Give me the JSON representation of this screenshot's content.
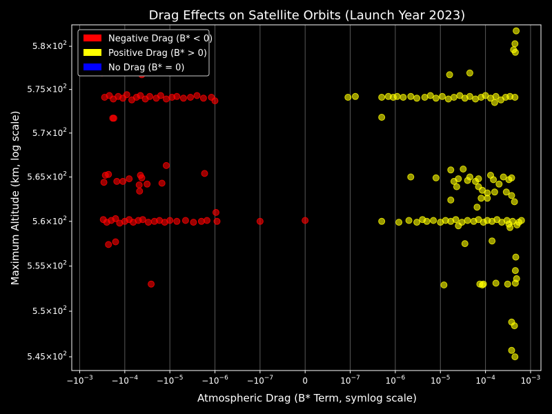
{
  "chart_data": {
    "type": "scatter",
    "title": "Drag Effects on Satellite Orbits (Launch Year 2023)",
    "xlabel": "Atmospheric Drag (B* Term, symlog scale)",
    "ylabel": "Maximum Altitude (km, log scale)",
    "x_scale": "symlog",
    "y_scale": "log",
    "linthresh": 1e-07,
    "xlim": [
      -0.0015,
      0.0017
    ],
    "ylim": [
      543.5,
      582.5
    ],
    "grid": "x-major",
    "legend_position": "top-left",
    "x_ticks": [
      {
        "value": -0.001,
        "label": "−10",
        "exp": "−3"
      },
      {
        "value": -0.0001,
        "label": "−10",
        "exp": "−4"
      },
      {
        "value": -1e-05,
        "label": "−10",
        "exp": "−5"
      },
      {
        "value": -1e-06,
        "label": "−10",
        "exp": "−6"
      },
      {
        "value": -1e-07,
        "label": "−10",
        "exp": "−7"
      },
      {
        "value": 0,
        "label": "0",
        "exp": ""
      },
      {
        "value": 1e-07,
        "label": "10",
        "exp": "−7"
      },
      {
        "value": 1e-06,
        "label": "10",
        "exp": "−6"
      },
      {
        "value": 1e-05,
        "label": "10",
        "exp": "−5"
      },
      {
        "value": 0.0001,
        "label": "10",
        "exp": "−4"
      },
      {
        "value": 0.001,
        "label": "10",
        "exp": "−3"
      }
    ],
    "y_ticks": [
      {
        "value": 545,
        "label": "5.45×10",
        "exp": "2"
      },
      {
        "value": 550,
        "label": "5.5×10",
        "exp": "2"
      },
      {
        "value": 555,
        "label": "5.55×10",
        "exp": "2"
      },
      {
        "value": 560,
        "label": "5.6×10",
        "exp": "2"
      },
      {
        "value": 565,
        "label": "5.65×10",
        "exp": "2"
      },
      {
        "value": 570,
        "label": "5.7×10",
        "exp": "2"
      },
      {
        "value": 575,
        "label": "5.75×10",
        "exp": "2"
      },
      {
        "value": 580,
        "label": "5.8×10",
        "exp": "2"
      }
    ],
    "series": [
      {
        "name": "Negative Drag (B* < 0)",
        "color": "#ff0000",
        "points": [
          [
            -0.00032,
            576.9
          ],
          [
            -4.2e-05,
            576.7
          ],
          [
            -0.00028,
            574.1
          ],
          [
            -0.00022,
            574.3
          ],
          [
            -0.00018,
            573.9
          ],
          [
            -0.00014,
            574.2
          ],
          [
            -0.00011,
            574.0
          ],
          [
            -9e-05,
            574.4
          ],
          [
            -7e-05,
            573.8
          ],
          [
            -5.5e-05,
            574.1
          ],
          [
            -4.5e-05,
            574.3
          ],
          [
            -3.5e-05,
            573.9
          ],
          [
            -2.8e-05,
            574.2
          ],
          [
            -2e-05,
            574.0
          ],
          [
            -1.6e-05,
            574.3
          ],
          [
            -1.2e-05,
            573.9
          ],
          [
            -9e-06,
            574.1
          ],
          [
            -7e-06,
            574.2
          ],
          [
            -5e-06,
            574.0
          ],
          [
            -3.5e-06,
            574.1
          ],
          [
            -2.5e-06,
            574.3
          ],
          [
            -1.8e-06,
            574.0
          ],
          [
            -1.2e-06,
            574.1
          ],
          [
            -1e-06,
            573.7
          ],
          [
            -0.000185,
            571.7
          ],
          [
            -0.000175,
            571.7
          ],
          [
            -1.2e-05,
            566.3
          ],
          [
            -1.7e-06,
            565.4
          ],
          [
            -0.00027,
            565.2
          ],
          [
            -0.00023,
            565.3
          ],
          [
            -0.00029,
            564.4
          ],
          [
            -0.00015,
            564.5
          ],
          [
            -0.00011,
            564.5
          ],
          [
            -8e-05,
            564.8
          ],
          [
            -4.5e-05,
            565.2
          ],
          [
            -4.2e-05,
            564.9
          ],
          [
            -3.2e-05,
            564.2
          ],
          [
            -4.8e-05,
            564.1
          ],
          [
            -4.7e-05,
            563.4
          ],
          [
            -1.5e-05,
            564.3
          ],
          [
            -0.0003,
            560.2
          ],
          [
            -0.00025,
            559.9
          ],
          [
            -0.0002,
            560.1
          ],
          [
            -0.00016,
            560.3
          ],
          [
            -0.00013,
            559.8
          ],
          [
            -0.0001,
            560.0
          ],
          [
            -8e-05,
            560.2
          ],
          [
            -6.5e-05,
            559.9
          ],
          [
            -5e-05,
            560.1
          ],
          [
            -4e-05,
            560.2
          ],
          [
            -3e-05,
            559.9
          ],
          [
            -2.2e-05,
            560.0
          ],
          [
            -1.7e-05,
            560.1
          ],
          [
            -1.3e-05,
            559.9
          ],
          [
            -1e-05,
            560.1
          ],
          [
            -7e-06,
            560.0
          ],
          [
            -4.5e-06,
            560.1
          ],
          [
            -3e-06,
            559.9
          ],
          [
            -2e-06,
            560.0
          ],
          [
            -1.5e-06,
            560.1
          ],
          [
            -9e-07,
            560.0
          ],
          [
            -9.5e-07,
            561.0
          ],
          [
            -1e-07,
            560.0
          ],
          [
            -0.0,
            560.1
          ],
          [
            -0.00023,
            557.4
          ],
          [
            -0.00016,
            557.7
          ],
          [
            -2.6e-05,
            553.0
          ]
        ]
      },
      {
        "name": "Positive Drag (B* > 0)",
        "color": "#ffff00",
        "points": [
          [
            0.00048,
            581.8
          ],
          [
            0.00045,
            580.3
          ],
          [
            0.00042,
            579.6
          ],
          [
            0.00046,
            579.3
          ],
          [
            1.6e-05,
            576.7
          ],
          [
            4.5e-05,
            576.9
          ],
          [
            9.5e-08,
            574.1
          ],
          [
            1.3e-07,
            574.2
          ],
          [
            5e-07,
            574.1
          ],
          [
            7e-07,
            574.2
          ],
          [
            9e-07,
            574.1
          ],
          [
            1.1e-06,
            574.2
          ],
          [
            1.5e-06,
            574.1
          ],
          [
            2.2e-06,
            574.2
          ],
          [
            3e-06,
            574.0
          ],
          [
            4.5e-06,
            574.1
          ],
          [
            6e-06,
            574.3
          ],
          [
            8e-06,
            574.0
          ],
          [
            1.1e-05,
            574.2
          ],
          [
            1.5e-05,
            573.9
          ],
          [
            2e-05,
            574.1
          ],
          [
            2.7e-05,
            574.3
          ],
          [
            3.5e-05,
            574.0
          ],
          [
            4.5e-05,
            574.2
          ],
          [
            6e-05,
            573.9
          ],
          [
            8e-05,
            574.1
          ],
          [
            0.0001,
            574.3
          ],
          [
            0.00013,
            574.0
          ],
          [
            0.00017,
            574.2
          ],
          [
            0.00022,
            573.8
          ],
          [
            0.00028,
            574.1
          ],
          [
            0.00035,
            574.2
          ],
          [
            0.00045,
            574.1
          ],
          [
            0.00016,
            573.5
          ],
          [
            5e-07,
            571.8
          ],
          [
            2.2e-06,
            565.0
          ],
          [
            8e-06,
            564.9
          ],
          [
            1.7e-05,
            565.8
          ],
          [
            2e-05,
            564.5
          ],
          [
            2.5e-05,
            564.8
          ],
          [
            3.2e-05,
            565.9
          ],
          [
            4e-05,
            564.6
          ],
          [
            4.5e-05,
            565.0
          ],
          [
            6e-05,
            564.5
          ],
          [
            7e-05,
            564.8
          ],
          [
            0.00013,
            565.2
          ],
          [
            0.00015,
            564.7
          ],
          [
            0.0002,
            564.2
          ],
          [
            0.00025,
            565.0
          ],
          [
            0.00033,
            564.7
          ],
          [
            0.00038,
            564.9
          ],
          [
            2.3e-05,
            563.9
          ],
          [
            7e-05,
            563.9
          ],
          [
            8.5e-05,
            563.5
          ],
          [
            0.00011,
            563.2
          ],
          [
            0.00016,
            563.3
          ],
          [
            0.00029,
            563.3
          ],
          [
            1.7e-05,
            562.4
          ],
          [
            8e-05,
            562.6
          ],
          [
            6.5e-05,
            561.6
          ],
          [
            0.00011,
            562.6
          ],
          [
            0.00038,
            562.9
          ],
          [
            0.00044,
            562.2
          ],
          [
            5e-07,
            560.0
          ],
          [
            1.2e-06,
            559.9
          ],
          [
            2e-06,
            560.1
          ],
          [
            3e-06,
            559.9
          ],
          [
            4e-06,
            560.2
          ],
          [
            5e-06,
            560.0
          ],
          [
            7e-06,
            560.1
          ],
          [
            1e-05,
            559.9
          ],
          [
            1.3e-05,
            560.1
          ],
          [
            1.7e-05,
            560.0
          ],
          [
            2.2e-05,
            560.2
          ],
          [
            3e-05,
            559.9
          ],
          [
            4e-05,
            560.1
          ],
          [
            5.5e-05,
            560.0
          ],
          [
            7e-05,
            560.2
          ],
          [
            9e-05,
            559.9
          ],
          [
            0.00011,
            560.1
          ],
          [
            0.00014,
            560.0
          ],
          [
            0.00018,
            560.2
          ],
          [
            0.00023,
            559.9
          ],
          [
            0.0003,
            560.1
          ],
          [
            0.0004,
            560.0
          ],
          [
            0.00055,
            559.9
          ],
          [
            0.00063,
            560.1
          ],
          [
            0.0005,
            559.6
          ],
          [
            0.00033,
            559.7
          ],
          [
            2.5e-05,
            559.5
          ],
          [
            0.00035,
            559.3
          ],
          [
            3.5e-05,
            557.5
          ],
          [
            0.00014,
            557.8
          ],
          [
            0.00047,
            556.0
          ],
          [
            0.00046,
            554.5
          ],
          [
            0.00049,
            553.6
          ],
          [
            1.2e-05,
            552.9
          ],
          [
            7.5e-05,
            553.0
          ],
          [
            9e-05,
            553.0
          ],
          [
            8.5e-05,
            552.9
          ],
          [
            0.00017,
            553.1
          ],
          [
            0.00031,
            553.0
          ],
          [
            0.00046,
            553.1
          ],
          [
            0.00038,
            548.8
          ],
          [
            0.00044,
            548.4
          ],
          [
            0.00038,
            545.7
          ],
          [
            0.00045,
            545.0
          ]
        ]
      },
      {
        "name": "No Drag (B* = 0)",
        "color": "#0000ff",
        "points": []
      }
    ]
  }
}
